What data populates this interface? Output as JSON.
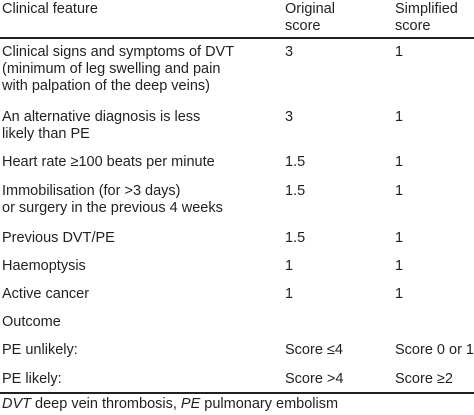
{
  "header": {
    "feature": "Clinical feature",
    "original": [
      "Original",
      "score"
    ],
    "simplified": [
      "Simplified",
      "score"
    ]
  },
  "rows": [
    {
      "feature": [
        "Clinical signs and symptoms of DVT",
        "(minimum of leg swelling and pain",
        "with palpation of the deep veins)"
      ],
      "original": "3",
      "simplified": "1"
    },
    {
      "feature": [
        "An alternative diagnosis is less",
        "likely than PE"
      ],
      "original": "3",
      "simplified": "1"
    },
    {
      "feature": [
        "Heart rate ≥100 beats per minute"
      ],
      "original": "1.5",
      "simplified": "1"
    },
    {
      "feature": [
        "Immobilisation (for >3 days)",
        "or surgery in the previous 4 weeks"
      ],
      "original": "1.5",
      "simplified": "1"
    },
    {
      "feature": [
        "Previous DVT/PE"
      ],
      "original": "1.5",
      "simplified": "1"
    },
    {
      "feature": [
        "Haemoptysis"
      ],
      "original": "1",
      "simplified": "1"
    },
    {
      "feature": [
        "Active cancer"
      ],
      "original": "1",
      "simplified": "1"
    }
  ],
  "outcome": {
    "label": "Outcome",
    "rows": [
      {
        "label": "PE unlikely:",
        "original": "Score ≤4",
        "simplified": "Score 0 or 1"
      },
      {
        "label": "PE likely:",
        "original": "Score >4",
        "simplified": "Score ≥2"
      }
    ]
  },
  "footnote": {
    "abbr1": "DVT",
    "def1": " deep vein thrombosis, ",
    "abbr2": "PE",
    "def2": " pulmonary embolism"
  }
}
